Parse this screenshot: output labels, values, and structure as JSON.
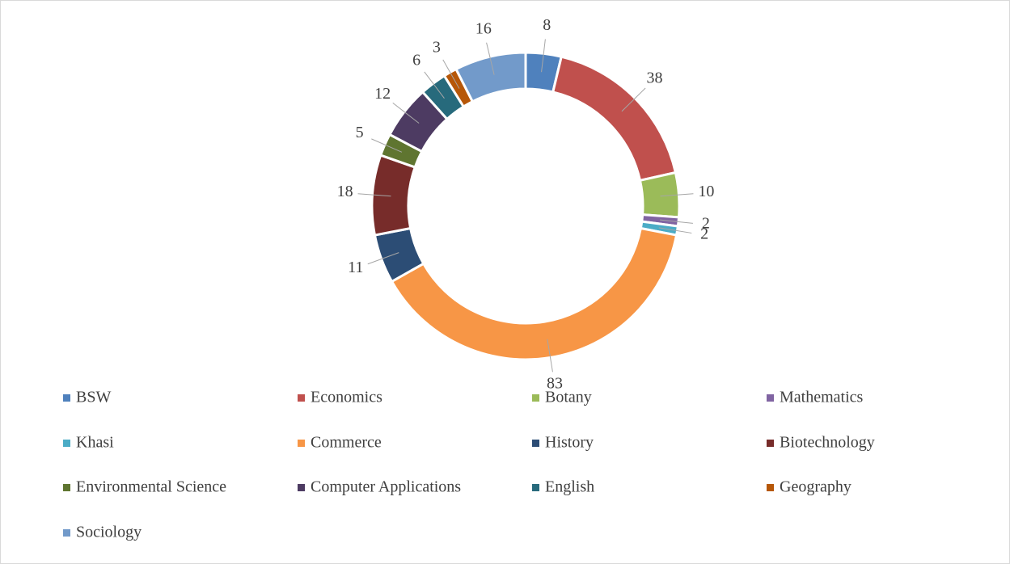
{
  "chart_data": {
    "type": "doughnut",
    "categories": [
      "BSW",
      "Economics",
      "Botany",
      "Mathematics",
      "Khasi",
      "Commerce",
      "History",
      "Biotechnology",
      "Environmental Science",
      "Computer Applications",
      "English",
      "Geography",
      "Sociology"
    ],
    "values": [
      8,
      38,
      10,
      2,
      2,
      83,
      11,
      18,
      5,
      12,
      6,
      3,
      16
    ],
    "colors": [
      "#4F81BD",
      "#C0504D",
      "#9BBB59",
      "#8064A2",
      "#4BACC6",
      "#F79646",
      "#2C4D75",
      "#772C2A",
      "#5F7530",
      "#4D3B62",
      "#276A7C",
      "#B65708",
      "#729ACA"
    ],
    "legend": "bottom"
  }
}
